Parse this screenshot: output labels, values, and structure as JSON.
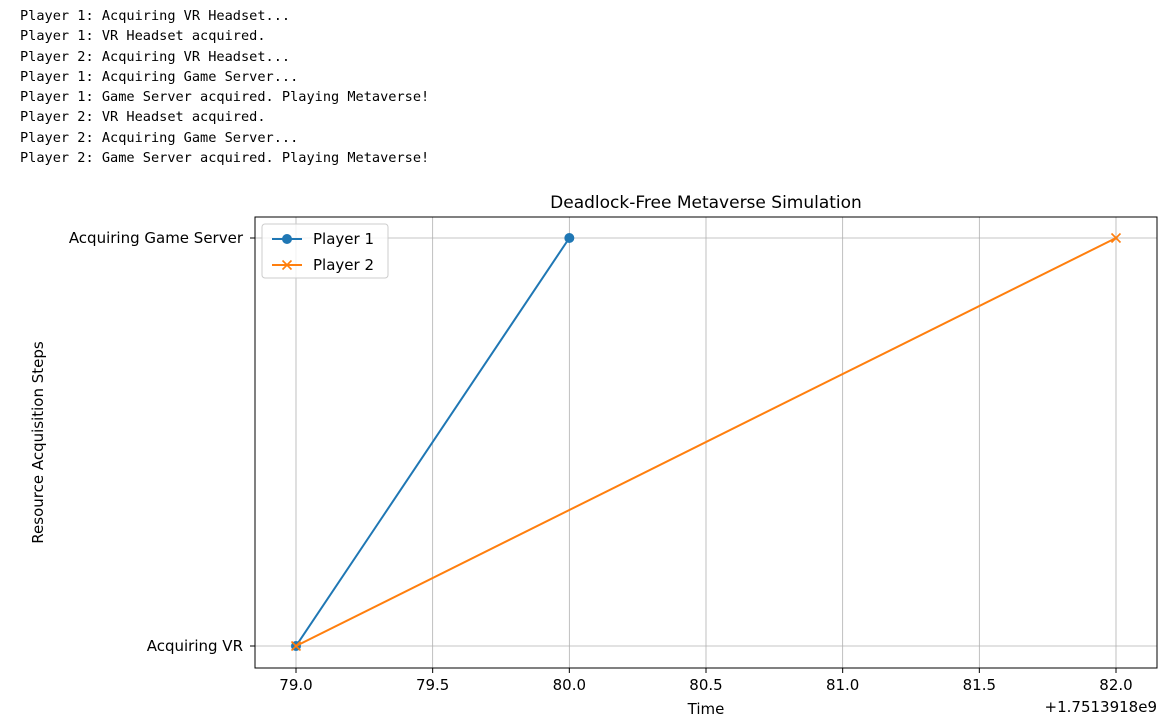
{
  "console": {
    "lines": [
      "Player 1: Acquiring VR Headset...",
      "Player 1: VR Headset acquired.",
      "Player 2: Acquiring VR Headset...",
      "Player 1: Acquiring Game Server...",
      "Player 1: Game Server acquired. Playing Metaverse!",
      "Player 2: VR Headset acquired.",
      "Player 2: Acquiring Game Server...",
      "Player 2: Game Server acquired. Playing Metaverse!"
    ]
  },
  "chart_data": {
    "type": "line",
    "title": "Deadlock-Free Metaverse Simulation",
    "xlabel": "Time",
    "ylabel": "Resource Acquisition Steps",
    "x_offset_label": "+1.7513918e9",
    "xlim": [
      78.85,
      82.15
    ],
    "xticks": [
      79.0,
      79.5,
      80.0,
      80.5,
      81.0,
      81.5,
      82.0
    ],
    "xtick_labels": [
      "79.0",
      "79.5",
      "80.0",
      "80.5",
      "81.0",
      "81.5",
      "82.0"
    ],
    "yticks": [
      "Acquiring VR",
      "Acquiring Game Server"
    ],
    "grid": true,
    "legend": "upper-left",
    "series": [
      {
        "name": "Player 1",
        "color": "#1f77b4",
        "marker": "circle",
        "points": [
          {
            "x": 79.0,
            "y": "Acquiring VR"
          },
          {
            "x": 80.0,
            "y": "Acquiring Game Server"
          }
        ]
      },
      {
        "name": "Player 2",
        "color": "#ff7f0e",
        "marker": "x",
        "points": [
          {
            "x": 79.0,
            "y": "Acquiring VR"
          },
          {
            "x": 82.0,
            "y": "Acquiring Game Server"
          }
        ]
      }
    ]
  }
}
